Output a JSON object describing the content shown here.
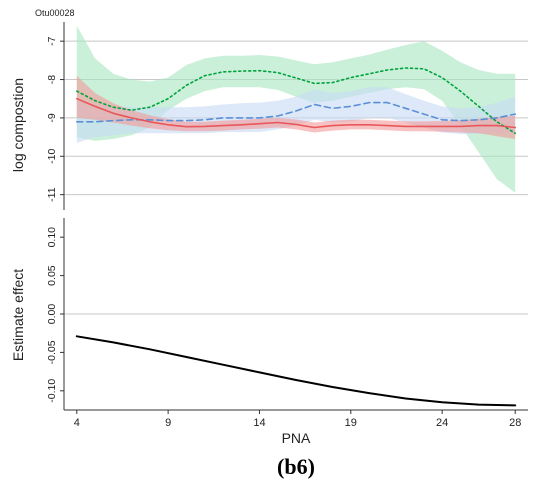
{
  "chart_data": [
    {
      "type": "line",
      "title": "Otu00028",
      "ylabel": "log compostion",
      "ylim": [
        -11.4,
        -6.5
      ],
      "yticks": [
        -7,
        -8,
        -9,
        -10,
        -11
      ],
      "ytick_labels": [
        "-7",
        "-8",
        "-9",
        "-10",
        "-11"
      ],
      "xlim": [
        3.3,
        28.7
      ],
      "grid": true,
      "legend": "none",
      "series": [
        {
          "color": "#00a33e",
          "band_color": "#a8e6bf",
          "dash": "dotted",
          "x": [
            4,
            5,
            6,
            7,
            8,
            9,
            10,
            11,
            12,
            13,
            14,
            15,
            16,
            17,
            18,
            19,
            20,
            21,
            22,
            23,
            24,
            25,
            26,
            27,
            28
          ],
          "values": [
            -8.3,
            -8.55,
            -8.72,
            -8.8,
            -8.72,
            -8.5,
            -8.15,
            -7.9,
            -7.8,
            -7.78,
            -7.77,
            -7.82,
            -7.96,
            -8.1,
            -8.08,
            -7.95,
            -7.85,
            -7.75,
            -7.7,
            -7.72,
            -7.95,
            -8.3,
            -8.7,
            -9.1,
            -9.4
          ],
          "lower": [
            -9.5,
            -9.6,
            -9.55,
            -9.45,
            -9.25,
            -8.8,
            -8.5,
            -8.3,
            -8.2,
            -8.2,
            -8.2,
            -8.27,
            -8.45,
            -8.6,
            -8.55,
            -8.45,
            -8.35,
            -8.25,
            -8.2,
            -8.25,
            -8.55,
            -9.2,
            -9.9,
            -10.6,
            -10.95
          ],
          "upper": [
            -6.6,
            -7.45,
            -7.85,
            -8.0,
            -8.05,
            -7.95,
            -7.62,
            -7.45,
            -7.38,
            -7.38,
            -7.36,
            -7.4,
            -7.5,
            -7.6,
            -7.55,
            -7.45,
            -7.35,
            -7.22,
            -7.1,
            -7.0,
            -7.25,
            -7.55,
            -7.75,
            -7.85,
            -7.85
          ]
        },
        {
          "color": "#5b8fd6",
          "band_color": "#c6daf5",
          "dash": "dashed",
          "x": [
            4,
            5,
            6,
            7,
            8,
            9,
            10,
            11,
            12,
            13,
            14,
            15,
            16,
            17,
            18,
            19,
            20,
            21,
            22,
            23,
            24,
            25,
            26,
            27,
            28
          ],
          "values": [
            -9.1,
            -9.1,
            -9.07,
            -9.05,
            -9.05,
            -9.07,
            -9.07,
            -9.05,
            -9.0,
            -9.0,
            -9.0,
            -8.95,
            -8.82,
            -8.65,
            -8.75,
            -8.7,
            -8.6,
            -8.6,
            -8.75,
            -8.9,
            -9.05,
            -9.07,
            -9.05,
            -9.0,
            -8.9
          ],
          "lower": [
            -9.65,
            -9.5,
            -9.45,
            -9.4,
            -9.4,
            -9.4,
            -9.4,
            -9.4,
            -9.37,
            -9.37,
            -9.37,
            -9.3,
            -9.2,
            -9.05,
            -9.12,
            -9.1,
            -9.0,
            -9.0,
            -9.12,
            -9.25,
            -9.38,
            -9.42,
            -9.42,
            -9.4,
            -9.4
          ],
          "upper": [
            -8.55,
            -8.65,
            -8.7,
            -8.72,
            -8.72,
            -8.72,
            -8.72,
            -8.7,
            -8.65,
            -8.62,
            -8.6,
            -8.55,
            -8.45,
            -8.25,
            -8.35,
            -8.3,
            -8.2,
            -8.2,
            -8.38,
            -8.55,
            -8.7,
            -8.75,
            -8.72,
            -8.6,
            -8.45
          ]
        },
        {
          "color": "#e8575a",
          "band_color": "#f29a98",
          "dash": "solid",
          "x": [
            4,
            5,
            6,
            7,
            8,
            9,
            10,
            11,
            12,
            13,
            14,
            15,
            16,
            17,
            18,
            19,
            20,
            21,
            22,
            23,
            24,
            25,
            26,
            27,
            28
          ],
          "values": [
            -8.5,
            -8.7,
            -8.88,
            -9.0,
            -9.1,
            -9.18,
            -9.23,
            -9.22,
            -9.2,
            -9.18,
            -9.15,
            -9.12,
            -9.17,
            -9.25,
            -9.2,
            -9.18,
            -9.18,
            -9.2,
            -9.22,
            -9.22,
            -9.22,
            -9.22,
            -9.2,
            -9.2,
            -9.25
          ],
          "lower": [
            -9.0,
            -9.05,
            -9.12,
            -9.2,
            -9.27,
            -9.32,
            -9.35,
            -9.35,
            -9.33,
            -9.3,
            -9.28,
            -9.25,
            -9.3,
            -9.38,
            -9.33,
            -9.3,
            -9.3,
            -9.32,
            -9.35,
            -9.35,
            -9.36,
            -9.38,
            -9.4,
            -9.48,
            -9.55
          ],
          "upper": [
            -7.9,
            -8.35,
            -8.62,
            -8.8,
            -8.93,
            -9.03,
            -9.1,
            -9.1,
            -9.07,
            -9.05,
            -9.02,
            -9.0,
            -9.04,
            -9.12,
            -9.07,
            -9.05,
            -9.05,
            -9.07,
            -9.09,
            -9.09,
            -9.08,
            -9.06,
            -9.02,
            -8.97,
            -8.95
          ]
        }
      ]
    },
    {
      "type": "line",
      "xlabel": "PNA",
      "ylabel": "Estimate effect",
      "ylim": [
        -0.125,
        0.125
      ],
      "yticks": [
        0.1,
        0.05,
        0.0,
        -0.05,
        -0.1
      ],
      "ytick_labels": [
        "0.10",
        "0.05",
        "0.00",
        "-0.05",
        "-0.10"
      ],
      "xlim": [
        3.3,
        28.7
      ],
      "xticks": [
        4,
        9,
        14,
        19,
        24,
        28
      ],
      "xtick_labels": [
        "4",
        "9",
        "14",
        "19",
        "24",
        "28"
      ],
      "zero_line": true,
      "series": [
        {
          "color": "#000000",
          "x": [
            4,
            6,
            8,
            10,
            12,
            14,
            16,
            18,
            20,
            22,
            24,
            26,
            28
          ],
          "values": [
            -0.029,
            -0.037,
            -0.046,
            -0.056,
            -0.066,
            -0.076,
            -0.086,
            -0.095,
            -0.103,
            -0.11,
            -0.115,
            -0.118,
            -0.119
          ]
        }
      ]
    }
  ],
  "caption": "(b6)"
}
